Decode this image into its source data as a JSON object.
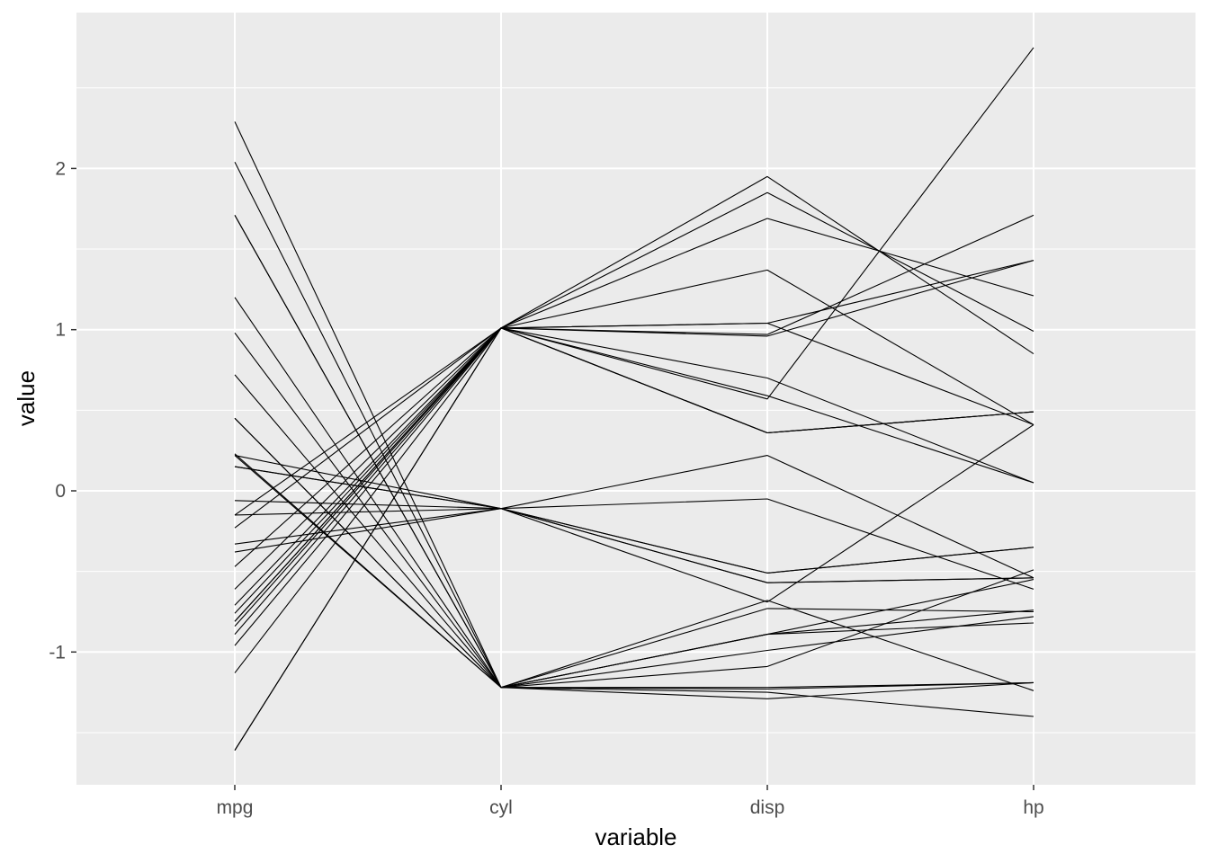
{
  "chart_data": {
    "type": "line",
    "title": "",
    "xlabel": "variable",
    "ylabel": "value",
    "categories": [
      "mpg",
      "cyl",
      "disp",
      "hp"
    ],
    "ylim": [
      -1.8,
      2.9
    ],
    "y_ticks": [
      -1,
      0,
      1,
      2
    ],
    "y_tick_labels": [
      "-1",
      "0",
      "1",
      "2"
    ],
    "grid": true,
    "colors": {
      "panel": "#EBEBEB",
      "grid": "#FFFFFF",
      "line": "#000000",
      "tick_text": "#4D4D4D"
    },
    "series": [
      {
        "values": [
          0.15,
          -0.11,
          -0.57,
          -0.54
        ]
      },
      {
        "values": [
          0.15,
          -0.11,
          -0.57,
          -0.54
        ]
      },
      {
        "values": [
          0.45,
          -1.22,
          -0.99,
          -0.78
        ]
      },
      {
        "values": [
          0.22,
          -0.11,
          0.22,
          -0.54
        ]
      },
      {
        "values": [
          -0.23,
          1.01,
          1.04,
          0.41
        ]
      },
      {
        "values": [
          -0.33,
          -0.11,
          -0.05,
          -0.61
        ]
      },
      {
        "values": [
          -0.96,
          1.01,
          1.04,
          1.43
        ]
      },
      {
        "values": [
          0.72,
          -1.22,
          -0.68,
          -1.24
        ]
      },
      {
        "values": [
          0.45,
          -1.22,
          -0.73,
          -0.75
        ]
      },
      {
        "values": [
          -0.15,
          -0.11,
          -0.51,
          -0.35
        ]
      },
      {
        "values": [
          -0.38,
          -0.11,
          -0.51,
          -0.35
        ]
      },
      {
        "values": [
          -0.61,
          1.01,
          0.36,
          0.49
        ]
      },
      {
        "values": [
          -0.47,
          1.01,
          0.36,
          0.49
        ]
      },
      {
        "values": [
          -0.81,
          1.01,
          0.36,
          0.49
        ]
      },
      {
        "values": [
          -1.61,
          1.01,
          1.95,
          0.85
        ]
      },
      {
        "values": [
          -1.61,
          1.01,
          1.85,
          0.99
        ]
      },
      {
        "values": [
          -0.89,
          1.01,
          1.69,
          1.21
        ]
      },
      {
        "values": [
          2.04,
          -1.22,
          -1.23,
          -1.19
        ]
      },
      {
        "values": [
          1.71,
          -1.22,
          -1.25,
          -1.4
        ]
      },
      {
        "values": [
          2.29,
          -1.22,
          -1.29,
          -1.19
        ]
      },
      {
        "values": [
          0.23,
          -1.22,
          -0.89,
          -0.74
        ]
      },
      {
        "values": [
          -0.76,
          1.01,
          0.7,
          0.05
        ]
      },
      {
        "values": [
          -0.81,
          1.01,
          0.59,
          0.05
        ]
      },
      {
        "values": [
          -1.13,
          1.01,
          0.96,
          1.43
        ]
      },
      {
        "values": [
          -0.15,
          1.01,
          1.37,
          0.41
        ]
      },
      {
        "values": [
          1.2,
          -1.22,
          -1.22,
          -1.19
        ]
      },
      {
        "values": [
          0.98,
          -1.22,
          -0.89,
          -0.82
        ]
      },
      {
        "values": [
          1.71,
          -1.22,
          -1.09,
          -0.49
        ]
      },
      {
        "values": [
          -0.71,
          1.01,
          0.97,
          1.71
        ]
      },
      {
        "values": [
          -0.06,
          -0.11,
          -0.69,
          0.41
        ]
      },
      {
        "values": [
          -0.84,
          1.01,
          0.57,
          2.75
        ]
      },
      {
        "values": [
          0.22,
          -1.22,
          -0.89,
          -0.55
        ]
      }
    ]
  }
}
